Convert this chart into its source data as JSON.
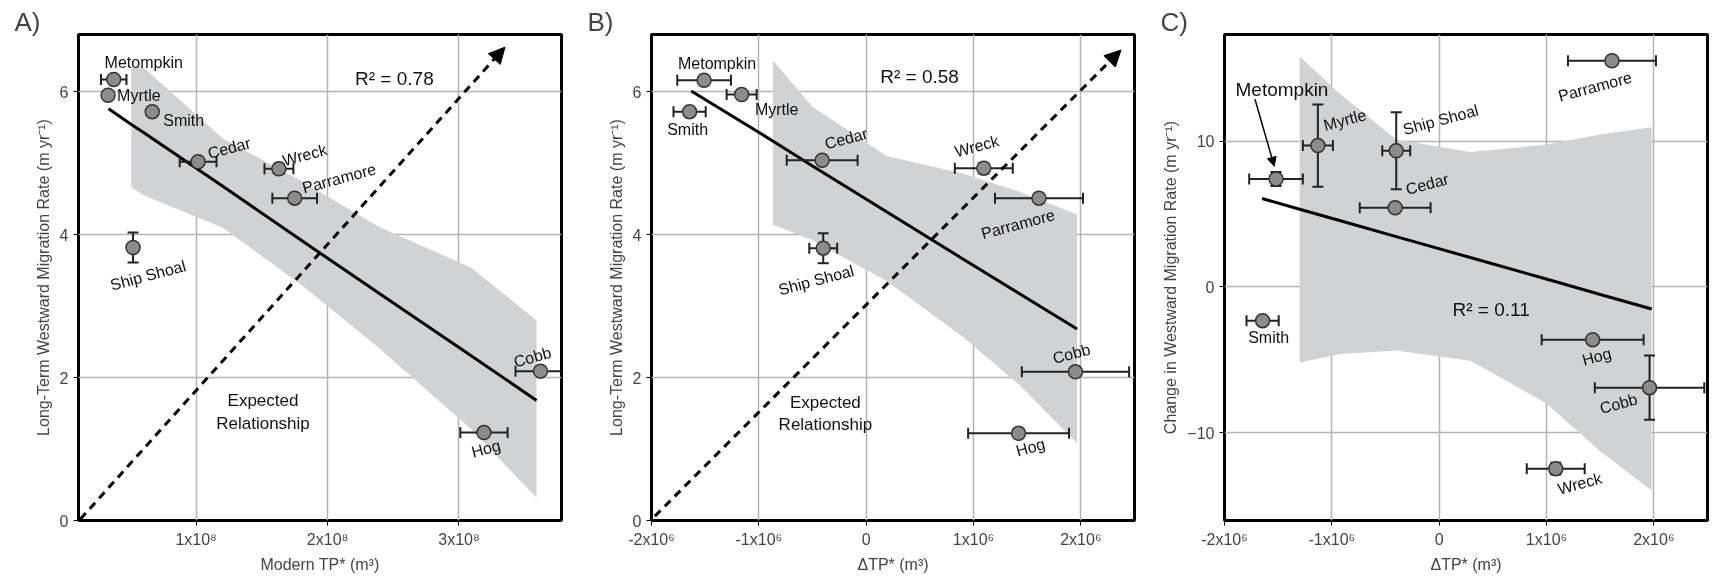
{
  "chart_data": [
    {
      "type": "scatter",
      "title": "A)",
      "xlabel": "Modern TP* (m³)",
      "ylabel": "Long-Term Westward Migration Rate (m yr⁻¹)",
      "xlim": [
        10500000.0,
        378000000.0
      ],
      "ylim": [
        0,
        6.8
      ],
      "xticks": [
        {
          "value": 100000000.0,
          "label": "1x10⁸"
        },
        {
          "value": 200000000.0,
          "label": "2x10⁸"
        },
        {
          "value": 300000000.0,
          "label": "3x10⁸"
        }
      ],
      "yticks": [
        0,
        2,
        4,
        6
      ],
      "grid": true,
      "marker": "circle",
      "series": [
        {
          "type": "scatter",
          "color": "#8c8c8c",
          "x": [
            37300000.0,
            33000000.0,
            66600000.0,
            101500000.0,
            163000000.0,
            175000000.0,
            52000000.0,
            362000000.0,
            319000000.0
          ],
          "values": [
            6.17,
            5.95,
            5.72,
            5.02,
            4.92,
            4.51,
            3.82,
            2.09,
            1.23
          ],
          "errors": [
            null,
            null,
            null,
            null,
            0.07,
            null,
            0.21,
            null,
            null
          ],
          "xerrors": [
            9700000.0,
            null,
            3000000.0,
            14000000.0,
            11000000.0,
            17000000.0,
            null,
            19000000.0,
            18000000.0
          ]
        },
        {
          "type": "line",
          "marker": "none",
          "color": "#000000",
          "x": [
            33400000.0,
            50700000.0,
            60000000.0,
            120000000.0,
            180000000.0,
            240000000.0,
            309000000.0,
            359000000.0
          ],
          "values": [
            5.76,
            5.54,
            5.43,
            4.68,
            3.92,
            3.17,
            2.31,
            1.68
          ],
          "lower": [
            null,
            4.66,
            4.55,
            4.1,
            3.3,
            2.4,
            1.28,
            0.32
          ],
          "upper": [
            null,
            6.34,
            6.34,
            5.35,
            4.75,
            4.1,
            3.54,
            2.8
          ]
        }
      ],
      "annotations": [
        {
          "text": "Metompkin",
          "x": 37300000.0,
          "y": 6.17
        },
        {
          "text": "Myrtle",
          "x": 33000000.0,
          "y": 5.95
        },
        {
          "text": "Smith",
          "x": 66600000.0,
          "y": 5.72
        },
        {
          "text": "Cedar",
          "x": 101500000.0,
          "y": 5.02
        },
        {
          "text": "Wreck",
          "x": 163000000.0,
          "y": 4.92
        },
        {
          "text": "Parramore",
          "x": 175000000.0,
          "y": 4.51
        },
        {
          "text": "Ship Shoal",
          "x": 52000000.0,
          "y": 3.82
        },
        {
          "text": "Cobb",
          "x": 362000000.0,
          "y": 2.09
        },
        {
          "text": "Hog",
          "x": 319000000.0,
          "y": 1.23
        },
        "R² = 0.78",
        "Expected Relationship"
      ]
    },
    {
      "type": "scatter",
      "title": "B)",
      "xlabel": "ΔTP* (m³)",
      "ylabel": "Long-Term Westward Migration Rate (m yr⁻¹)",
      "xlim": [
        -2000000.0,
        2500000.0
      ],
      "ylim": [
        0,
        6.8
      ],
      "xticks": [
        {
          "value": -2000000.0,
          "label": "-2x10⁶"
        },
        {
          "value": -1000000.0,
          "label": "-1x10⁶"
        },
        {
          "value": 0,
          "label": "0"
        },
        {
          "value": 1000000.0,
          "label": "1x10⁶"
        },
        {
          "value": 2000000.0,
          "label": "2x10⁶"
        }
      ],
      "yticks": [
        0,
        2,
        4,
        6
      ],
      "grid": true,
      "marker": "circle",
      "series": [
        {
          "type": "scatter",
          "color": "#8c8c8c",
          "x": [
            -1510000.0,
            -1160000.0,
            -1645000.0,
            -410000.0,
            1096000.0,
            1610000.0,
            -400000.0,
            1950000.0,
            1420000.0
          ],
          "values": [
            6.16,
            5.96,
            5.72,
            5.04,
            4.93,
            4.51,
            3.81,
            2.08,
            1.22
          ],
          "errors": [
            null,
            null,
            null,
            null,
            0.07,
            null,
            0.21,
            null,
            null
          ],
          "xerrors": [
            250000.0,
            140000.0,
            150000.0,
            330000.0,
            270000.0,
            410000.0,
            130000.0,
            500000.0,
            470000.0
          ]
        },
        {
          "type": "line",
          "marker": "none",
          "color": "#000000",
          "x": [
            -1630000.0,
            -870000.0,
            -500000.0,
            190000.0,
            890000.0,
            1410000.0,
            1965000.0
          ],
          "values": [
            6.01,
            5.31,
            4.96,
            4.32,
            3.67,
            3.19,
            2.68
          ],
          "lower": [
            null,
            4.14,
            3.92,
            3.35,
            2.58,
            1.92,
            1.08
          ],
          "upper": [
            null,
            6.44,
            5.79,
            5.1,
            4.86,
            4.61,
            4.28
          ]
        }
      ],
      "annotations": [
        {
          "text": "Metompkin",
          "x": -1510000.0,
          "y": 6.16
        },
        {
          "text": "Myrtle",
          "x": -1160000.0,
          "y": 5.96
        },
        {
          "text": "Smith",
          "x": -1645000.0,
          "y": 5.72
        },
        {
          "text": "Cedar",
          "x": -410000.0,
          "y": 5.04
        },
        {
          "text": "Wreck",
          "x": 1096000.0,
          "y": 4.93
        },
        {
          "text": "Parramore",
          "x": 1610000.0,
          "y": 4.51
        },
        {
          "text": "Ship Shoal",
          "x": -400000.0,
          "y": 3.81
        },
        {
          "text": "Cobb",
          "x": 1950000.0,
          "y": 2.08
        },
        {
          "text": "Hog",
          "x": 1420000.0,
          "y": 1.22
        },
        "R² = 0.58",
        "Expected Relationship"
      ]
    },
    {
      "type": "scatter",
      "title": "C)",
      "xlabel": "ΔTP* (m³)",
      "ylabel": "Change in Westward Migration Rate (m yr⁻¹)",
      "xlim": [
        -2000000.0,
        2500000.0
      ],
      "ylim": [
        -16,
        17.3
      ],
      "xticks": [
        {
          "value": -2000000.0,
          "label": "-2x10⁶"
        },
        {
          "value": -1000000.0,
          "label": "-1x10⁶"
        },
        {
          "value": 0,
          "label": "0"
        },
        {
          "value": 1000000.0,
          "label": "1x10⁶"
        },
        {
          "value": 2000000.0,
          "label": "2x10⁶"
        }
      ],
      "yticks": [
        -10,
        0,
        10
      ],
      "grid": true,
      "marker": "circle",
      "series": [
        {
          "type": "scatter",
          "color": "#8c8c8c",
          "x": [
            -1520000.0,
            -1130000.0,
            -1645000.0,
            -410000.0,
            1086000.0,
            1610000.0,
            -400000.0,
            1960000.0,
            1430000.0
          ],
          "values": [
            7.4,
            9.69,
            -2.31,
            5.43,
            -12.45,
            15.5,
            9.33,
            -6.9,
            -3.61
          ],
          "errors": [
            0.48,
            2.82,
            null,
            null,
            0.4,
            null,
            2.64,
            2.2,
            null
          ],
          "xerrors": [
            250000.0,
            140000.0,
            150000.0,
            330000.0,
            270000.0,
            410000.0,
            130000.0,
            510000.0,
            475000.0
          ]
        },
        {
          "type": "line",
          "marker": "none",
          "color": "#000000",
          "x": [
            -1650000.0,
            -1300000.0,
            -920000.0,
            -400000.0,
            290000.0,
            990000.0,
            1510000.0,
            1980000.0
          ],
          "values": [
            6.06,
            5.33,
            4.54,
            3.45,
            2.02,
            0.56,
            -0.53,
            -1.51
          ],
          "lower": [
            null,
            -5.17,
            -4.6,
            -4.35,
            -5.05,
            -7.93,
            -11.3,
            -13.94
          ],
          "upper": [
            null,
            15.8,
            13.2,
            10.1,
            9.25,
            9.74,
            10.46,
            10.94
          ]
        }
      ],
      "annotations": [
        "Metompkin",
        {
          "text": "Myrtle",
          "x": -1130000.0,
          "y": 9.69
        },
        {
          "text": "Smith",
          "x": -1645000.0,
          "y": -2.31
        },
        {
          "text": "Cedar",
          "x": -410000.0,
          "y": 5.43
        },
        {
          "text": "Wreck",
          "x": 1086000.0,
          "y": -12.45
        },
        {
          "text": "Parramore",
          "x": 1610000.0,
          "y": 15.5
        },
        {
          "text": "Ship Shoal",
          "x": -400000.0,
          "y": 9.33
        },
        {
          "text": "Cobb",
          "x": 1960000.0,
          "y": -6.9
        },
        {
          "text": "Hog",
          "x": 1430000.0,
          "y": -3.61
        },
        "R² = 0.11"
      ]
    }
  ]
}
